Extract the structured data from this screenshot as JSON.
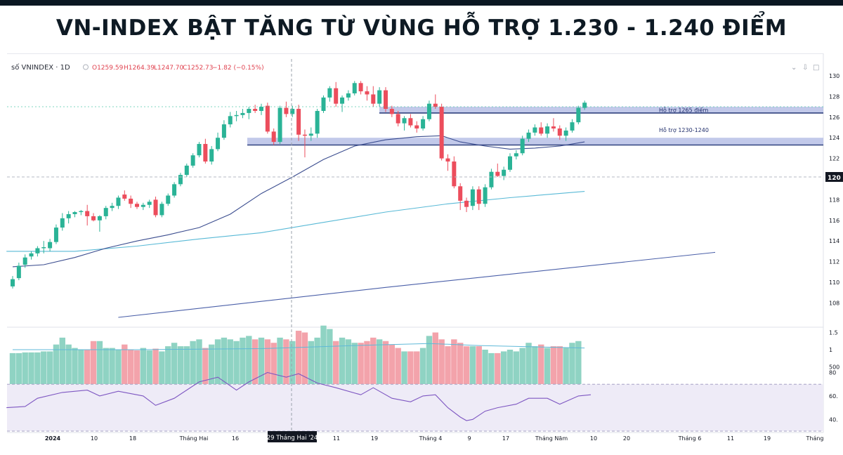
{
  "headline": "VN-INDEX BẬT TĂNG TỪ VÙNG HỖ TRỢ 1.230 - 1.240 ĐIỂM",
  "legend": {
    "symbol": "số VNINDEX · 1D",
    "open": "O1259.59",
    "high": "H1264.39",
    "low": "L1247.70",
    "close": "C1252.73",
    "change": "−1.82 (−0.15%)"
  },
  "controls": [
    "⌄",
    "⇩",
    "□"
  ],
  "current_price_label": "120",
  "crosshair_date_label": "29 Tháng Hai '24",
  "chart_data": {
    "type": "candlestick",
    "price_axis_ticks": [
      130,
      128,
      126,
      124,
      122,
      120,
      118,
      116,
      114,
      112,
      110,
      108
    ],
    "volume_axis_ticks": [
      "1.5",
      "1",
      "500"
    ],
    "rsi_axis_ticks": [
      "80",
      "60.",
      "40."
    ],
    "x_tick_labels": [
      "2024",
      "10",
      "18",
      "Tháng Hai",
      "16",
      "11",
      "19",
      "Tháng 4",
      "9",
      "17",
      "Tháng Năm",
      "10",
      "20",
      "Tháng 6",
      "11",
      "19",
      "Tháng"
    ],
    "support_zones": [
      {
        "label": "Hỗ trợ 1265 điểm",
        "from": 126.4,
        "to": 127.0
      },
      {
        "label": "Hỗ trợ 1230-1240",
        "from": 123.3,
        "to": 124.0
      }
    ],
    "candles": [
      {
        "o": 109.6,
        "h": 110.6,
        "l": 109.4,
        "c": 110.3
      },
      {
        "o": 110.4,
        "h": 111.9,
        "l": 110.2,
        "c": 111.6
      },
      {
        "o": 111.7,
        "h": 112.7,
        "l": 111.4,
        "c": 112.4
      },
      {
        "o": 112.5,
        "h": 113.0,
        "l": 112.2,
        "c": 112.8
      },
      {
        "o": 112.8,
        "h": 113.5,
        "l": 112.5,
        "c": 113.3
      },
      {
        "o": 113.3,
        "h": 114.0,
        "l": 112.8,
        "c": 113.4
      },
      {
        "o": 113.3,
        "h": 114.2,
        "l": 113.0,
        "c": 113.9
      },
      {
        "o": 113.9,
        "h": 115.6,
        "l": 113.7,
        "c": 115.3
      },
      {
        "o": 115.3,
        "h": 116.7,
        "l": 115.0,
        "c": 116.2
      },
      {
        "o": 116.2,
        "h": 116.9,
        "l": 115.7,
        "c": 116.6
      },
      {
        "o": 116.6,
        "h": 116.9,
        "l": 116.3,
        "c": 116.8
      },
      {
        "o": 116.8,
        "h": 117.0,
        "l": 116.5,
        "c": 116.9
      },
      {
        "o": 116.9,
        "h": 117.5,
        "l": 115.5,
        "c": 116.4
      },
      {
        "o": 116.4,
        "h": 116.7,
        "l": 115.9,
        "c": 116.0
      },
      {
        "o": 116.0,
        "h": 116.5,
        "l": 114.9,
        "c": 116.4
      },
      {
        "o": 116.4,
        "h": 117.4,
        "l": 116.1,
        "c": 117.2
      },
      {
        "o": 117.2,
        "h": 117.7,
        "l": 116.9,
        "c": 117.4
      },
      {
        "o": 117.4,
        "h": 118.4,
        "l": 117.1,
        "c": 118.2
      },
      {
        "o": 118.5,
        "h": 118.9,
        "l": 117.9,
        "c": 118.1
      },
      {
        "o": 118.1,
        "h": 118.4,
        "l": 117.2,
        "c": 117.6
      },
      {
        "o": 117.6,
        "h": 117.8,
        "l": 117.1,
        "c": 117.3
      },
      {
        "o": 117.3,
        "h": 117.7,
        "l": 117.0,
        "c": 117.5
      },
      {
        "o": 117.5,
        "h": 118.0,
        "l": 117.2,
        "c": 117.8
      },
      {
        "o": 118.0,
        "h": 118.3,
        "l": 116.3,
        "c": 116.5
      },
      {
        "o": 116.5,
        "h": 117.8,
        "l": 116.3,
        "c": 117.6
      },
      {
        "o": 117.6,
        "h": 118.6,
        "l": 117.4,
        "c": 118.4
      },
      {
        "o": 118.4,
        "h": 119.7,
        "l": 118.2,
        "c": 119.5
      },
      {
        "o": 119.5,
        "h": 120.6,
        "l": 119.3,
        "c": 120.4
      },
      {
        "o": 120.4,
        "h": 121.5,
        "l": 120.2,
        "c": 121.3
      },
      {
        "o": 121.3,
        "h": 122.5,
        "l": 121.1,
        "c": 122.3
      },
      {
        "o": 122.3,
        "h": 123.6,
        "l": 122.1,
        "c": 123.4
      },
      {
        "o": 123.4,
        "h": 123.9,
        "l": 121.5,
        "c": 121.7
      },
      {
        "o": 121.7,
        "h": 123.2,
        "l": 121.4,
        "c": 122.9
      },
      {
        "o": 122.9,
        "h": 124.5,
        "l": 122.7,
        "c": 124.0
      },
      {
        "o": 124.0,
        "h": 125.7,
        "l": 123.8,
        "c": 125.3
      },
      {
        "o": 125.3,
        "h": 126.5,
        "l": 125.0,
        "c": 126.1
      },
      {
        "o": 126.1,
        "h": 126.6,
        "l": 125.6,
        "c": 126.2
      },
      {
        "o": 126.2,
        "h": 126.8,
        "l": 125.9,
        "c": 126.4
      },
      {
        "o": 126.4,
        "h": 127.0,
        "l": 125.8,
        "c": 126.8
      },
      {
        "o": 126.8,
        "h": 127.2,
        "l": 126.4,
        "c": 126.6
      },
      {
        "o": 126.6,
        "h": 127.3,
        "l": 126.2,
        "c": 127.0
      },
      {
        "o": 127.1,
        "h": 127.4,
        "l": 124.4,
        "c": 124.6
      },
      {
        "o": 124.6,
        "h": 124.9,
        "l": 123.3,
        "c": 123.6
      },
      {
        "o": 123.6,
        "h": 127.1,
        "l": 123.4,
        "c": 126.9
      },
      {
        "o": 126.9,
        "h": 127.5,
        "l": 126.0,
        "c": 126.3
      },
      {
        "o": 126.3,
        "h": 127.1,
        "l": 126.0,
        "c": 126.8
      },
      {
        "o": 126.8,
        "h": 127.2,
        "l": 123.7,
        "c": 124.3
      },
      {
        "o": 124.3,
        "h": 124.8,
        "l": 122.1,
        "c": 124.2
      },
      {
        "o": 124.2,
        "h": 125.0,
        "l": 123.7,
        "c": 124.4
      },
      {
        "o": 124.4,
        "h": 126.8,
        "l": 124.0,
        "c": 126.6
      },
      {
        "o": 126.6,
        "h": 128.1,
        "l": 126.4,
        "c": 127.9
      },
      {
        "o": 127.9,
        "h": 129.0,
        "l": 127.5,
        "c": 128.8
      },
      {
        "o": 128.8,
        "h": 129.4,
        "l": 127.0,
        "c": 127.3
      },
      {
        "o": 127.3,
        "h": 128.1,
        "l": 126.5,
        "c": 127.9
      },
      {
        "o": 127.9,
        "h": 128.6,
        "l": 127.6,
        "c": 128.3
      },
      {
        "o": 128.3,
        "h": 129.5,
        "l": 128.1,
        "c": 129.3
      },
      {
        "o": 129.3,
        "h": 129.5,
        "l": 128.2,
        "c": 128.5
      },
      {
        "o": 128.5,
        "h": 129.0,
        "l": 127.6,
        "c": 128.2
      },
      {
        "o": 128.2,
        "h": 129.0,
        "l": 127.0,
        "c": 127.3
      },
      {
        "o": 127.3,
        "h": 128.9,
        "l": 127.0,
        "c": 128.6
      },
      {
        "o": 128.6,
        "h": 128.9,
        "l": 126.5,
        "c": 126.8
      },
      {
        "o": 126.8,
        "h": 127.1,
        "l": 126.0,
        "c": 126.3
      },
      {
        "o": 126.3,
        "h": 126.6,
        "l": 125.1,
        "c": 125.4
      },
      {
        "o": 125.4,
        "h": 126.1,
        "l": 124.7,
        "c": 125.9
      },
      {
        "o": 125.9,
        "h": 126.3,
        "l": 125.0,
        "c": 125.2
      },
      {
        "o": 125.2,
        "h": 125.6,
        "l": 124.5,
        "c": 124.9
      },
      {
        "o": 124.9,
        "h": 126.1,
        "l": 124.7,
        "c": 125.8
      },
      {
        "o": 125.8,
        "h": 127.6,
        "l": 125.6,
        "c": 127.3
      },
      {
        "o": 127.3,
        "h": 128.2,
        "l": 126.8,
        "c": 127.0
      },
      {
        "o": 127.0,
        "h": 127.3,
        "l": 121.8,
        "c": 122.0
      },
      {
        "o": 122.0,
        "h": 122.4,
        "l": 120.8,
        "c": 121.7
      },
      {
        "o": 121.7,
        "h": 122.2,
        "l": 119.1,
        "c": 119.3
      },
      {
        "o": 119.3,
        "h": 119.6,
        "l": 117.0,
        "c": 117.9
      },
      {
        "o": 117.9,
        "h": 118.2,
        "l": 116.8,
        "c": 117.3
      },
      {
        "o": 117.4,
        "h": 119.3,
        "l": 117.0,
        "c": 119.0
      },
      {
        "o": 119.0,
        "h": 119.3,
        "l": 117.0,
        "c": 117.6
      },
      {
        "o": 117.6,
        "h": 119.5,
        "l": 117.3,
        "c": 119.2
      },
      {
        "o": 119.2,
        "h": 121.0,
        "l": 119.0,
        "c": 120.7
      },
      {
        "o": 120.7,
        "h": 121.5,
        "l": 120.2,
        "c": 120.3
      },
      {
        "o": 120.3,
        "h": 121.2,
        "l": 119.9,
        "c": 120.9
      },
      {
        "o": 120.9,
        "h": 122.5,
        "l": 120.7,
        "c": 122.2
      },
      {
        "o": 122.2,
        "h": 122.8,
        "l": 121.9,
        "c": 122.5
      },
      {
        "o": 122.5,
        "h": 124.2,
        "l": 122.3,
        "c": 123.9
      },
      {
        "o": 123.9,
        "h": 124.8,
        "l": 123.6,
        "c": 124.5
      },
      {
        "o": 124.5,
        "h": 125.3,
        "l": 124.2,
        "c": 125.0
      },
      {
        "o": 125.0,
        "h": 125.5,
        "l": 124.2,
        "c": 124.4
      },
      {
        "o": 124.4,
        "h": 125.4,
        "l": 124.0,
        "c": 125.1
      },
      {
        "o": 125.1,
        "h": 125.9,
        "l": 124.6,
        "c": 124.9
      },
      {
        "o": 124.9,
        "h": 125.2,
        "l": 123.8,
        "c": 124.2
      },
      {
        "o": 124.2,
        "h": 125.0,
        "l": 123.7,
        "c": 124.7
      },
      {
        "o": 124.7,
        "h": 125.8,
        "l": 124.5,
        "c": 125.5
      },
      {
        "o": 125.5,
        "h": 127.1,
        "l": 125.3,
        "c": 126.9
      },
      {
        "o": 126.9,
        "h": 127.6,
        "l": 126.7,
        "c": 127.4
      }
    ],
    "ma_dark": [
      [
        0,
        111.5
      ],
      [
        5,
        111.7
      ],
      [
        10,
        112.4
      ],
      [
        15,
        113.3
      ],
      [
        20,
        114.0
      ],
      [
        25,
        114.6
      ],
      [
        30,
        115.3
      ],
      [
        35,
        116.6
      ],
      [
        40,
        118.6
      ],
      [
        45,
        120.2
      ],
      [
        50,
        121.9
      ],
      [
        55,
        123.2
      ],
      [
        60,
        123.8
      ],
      [
        65,
        124.1
      ],
      [
        69,
        124.2
      ],
      [
        72,
        123.6
      ],
      [
        76,
        123.2
      ],
      [
        80,
        122.9
      ],
      [
        84,
        123.0
      ],
      [
        88,
        123.2
      ],
      [
        92,
        123.6
      ]
    ],
    "ma_light": [
      [
        -1,
        113.0
      ],
      [
        10,
        113.0
      ],
      [
        20,
        113.5
      ],
      [
        30,
        114.2
      ],
      [
        40,
        114.8
      ],
      [
        50,
        115.8
      ],
      [
        60,
        116.8
      ],
      [
        70,
        117.6
      ],
      [
        80,
        118.2
      ],
      [
        92,
        118.8
      ]
    ],
    "ma_long": [
      [
        17,
        106.6
      ],
      [
        60,
        109.5
      ],
      [
        113,
        112.9
      ]
    ],
    "volume": [
      0.9,
      0.9,
      0.92,
      0.92,
      0.92,
      0.95,
      0.95,
      1.15,
      1.35,
      1.15,
      1.05,
      1.0,
      1.0,
      1.25,
      1.25,
      1.05,
      1.05,
      1.0,
      1.15,
      1.0,
      0.98,
      1.05,
      0.98,
      1.03,
      0.95,
      1.1,
      1.2,
      1.1,
      1.1,
      1.25,
      1.3,
      1.05,
      1.15,
      1.3,
      1.35,
      1.3,
      1.25,
      1.35,
      1.4,
      1.3,
      1.35,
      1.3,
      1.2,
      1.35,
      1.3,
      1.25,
      1.55,
      1.5,
      1.25,
      1.35,
      1.7,
      1.6,
      1.25,
      1.35,
      1.3,
      1.2,
      1.2,
      1.25,
      1.35,
      1.3,
      1.25,
      1.15,
      1.05,
      0.95,
      0.95,
      0.95,
      1.05,
      1.4,
      1.5,
      1.3,
      1.1,
      1.3,
      1.2,
      1.1,
      1.1,
      1.1,
      1.0,
      0.9,
      0.9,
      0.95,
      1.0,
      0.95,
      1.05,
      1.2,
      1.1,
      1.15,
      1.05,
      1.1,
      1.1,
      1.05,
      1.2,
      1.25
    ],
    "volume_ma": [
      [
        0,
        1.0
      ],
      [
        20,
        1.0
      ],
      [
        40,
        1.03
      ],
      [
        55,
        1.12
      ],
      [
        67,
        1.18
      ],
      [
        75,
        1.12
      ],
      [
        92,
        1.05
      ]
    ],
    "rsi": [
      [
        -1,
        50
      ],
      [
        2,
        51
      ],
      [
        4,
        58
      ],
      [
        8,
        63
      ],
      [
        12,
        65
      ],
      [
        14,
        60
      ],
      [
        17,
        64
      ],
      [
        21,
        60
      ],
      [
        23,
        52
      ],
      [
        26,
        58
      ],
      [
        30,
        72
      ],
      [
        33,
        76
      ],
      [
        36,
        65
      ],
      [
        38,
        72
      ],
      [
        41,
        80
      ],
      [
        44,
        76
      ],
      [
        46,
        79
      ],
      [
        49,
        71
      ],
      [
        52,
        67
      ],
      [
        56,
        61
      ],
      [
        58,
        67
      ],
      [
        61,
        58
      ],
      [
        64,
        55
      ],
      [
        66,
        60
      ],
      [
        68,
        61
      ],
      [
        70,
        50
      ],
      [
        72,
        42
      ],
      [
        73,
        39
      ],
      [
        74,
        40
      ],
      [
        76,
        47
      ],
      [
        78,
        50
      ],
      [
        81,
        53
      ],
      [
        83,
        58
      ],
      [
        86,
        58
      ],
      [
        88,
        53
      ],
      [
        91,
        60
      ],
      [
        93,
        61
      ]
    ]
  }
}
